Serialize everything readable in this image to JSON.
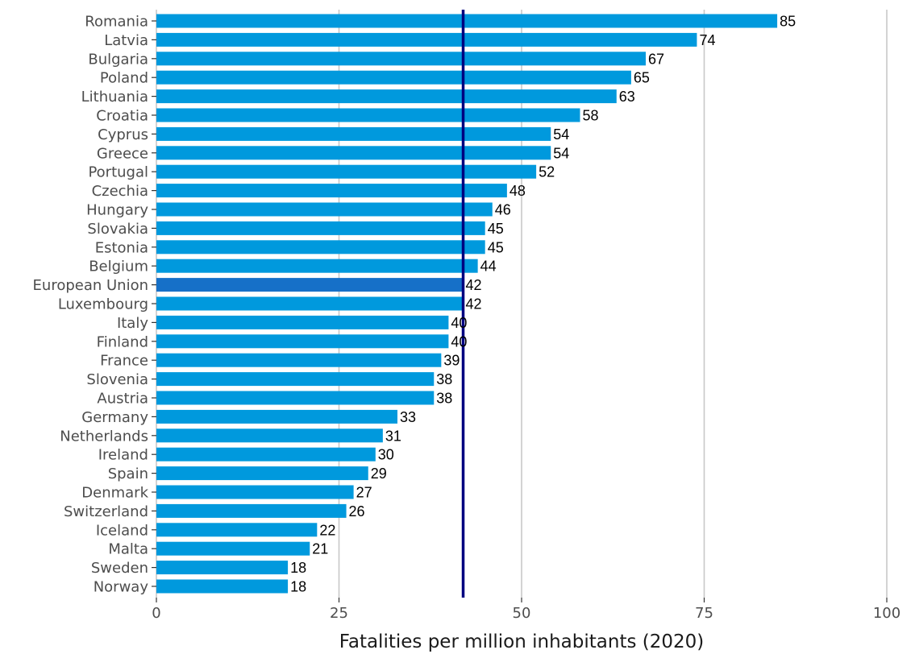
{
  "chart_data": {
    "type": "bar",
    "orientation": "horizontal",
    "title": "",
    "xlabel": "Fatalities per million inhabitants (2020)",
    "ylabel": "",
    "categories": [
      "Romania",
      "Latvia",
      "Bulgaria",
      "Poland",
      "Lithuania",
      "Croatia",
      "Cyprus",
      "Greece",
      "Portugal",
      "Czechia",
      "Hungary",
      "Slovakia",
      "Estonia",
      "Belgium",
      "European Union",
      "Luxembourg",
      "Italy",
      "Finland",
      "France",
      "Slovenia",
      "Austria",
      "Germany",
      "Netherlands",
      "Ireland",
      "Spain",
      "Denmark",
      "Switzerland",
      "Iceland",
      "Malta",
      "Sweden",
      "Norway"
    ],
    "values": [
      85,
      74,
      67,
      65,
      63,
      58,
      54,
      54,
      52,
      48,
      46,
      45,
      45,
      44,
      42,
      42,
      40,
      40,
      39,
      38,
      38,
      33,
      31,
      30,
      29,
      27,
      26,
      22,
      21,
      18,
      18
    ],
    "xlim": [
      0,
      100
    ],
    "xticks": [
      0,
      25,
      50,
      75,
      100
    ],
    "grid": "vertical major",
    "reference_line": {
      "value": 42,
      "color": "#000080"
    },
    "colors": {
      "bar": "#0099dd",
      "highlight_bar": "#1670c8",
      "highlight_category": "European Union",
      "grid": "#c8c8c8",
      "reference_line": "#000080"
    }
  }
}
